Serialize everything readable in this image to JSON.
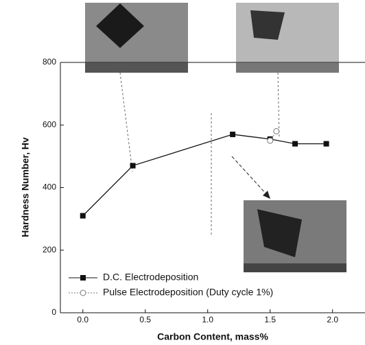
{
  "chart_data": {
    "type": "line",
    "xlabel": "Carbon Content, mass%",
    "ylabel": "Hardness Number, Hv",
    "xlim": [
      -0.18,
      2.26
    ],
    "ylim": [
      0,
      800
    ],
    "xticks": [
      {
        "value": 0,
        "label": "0.0"
      },
      {
        "value": 0.5,
        "label": "0.5"
      },
      {
        "value": 1,
        "label": "1.0"
      },
      {
        "value": 1.5,
        "label": "1.5"
      },
      {
        "value": 2,
        "label": "2.0"
      }
    ],
    "yticks": [
      0,
      200,
      400,
      600,
      800
    ],
    "legend": "lower left",
    "series": [
      {
        "name": "D.C. Electrodeposition",
        "color": "#111111",
        "marker": "square",
        "x": [
          0,
          0.4,
          1.2,
          1.5,
          1.7,
          1.95
        ],
        "values": [
          310,
          470,
          570,
          555,
          540,
          540
        ]
      },
      {
        "name": "Pulse Electrodeposition (Duty cycle 1%)",
        "color": "#777777",
        "marker": "circle",
        "x": [
          1.5,
          1.55
        ],
        "values": [
          550,
          580
        ]
      }
    ]
  }
}
